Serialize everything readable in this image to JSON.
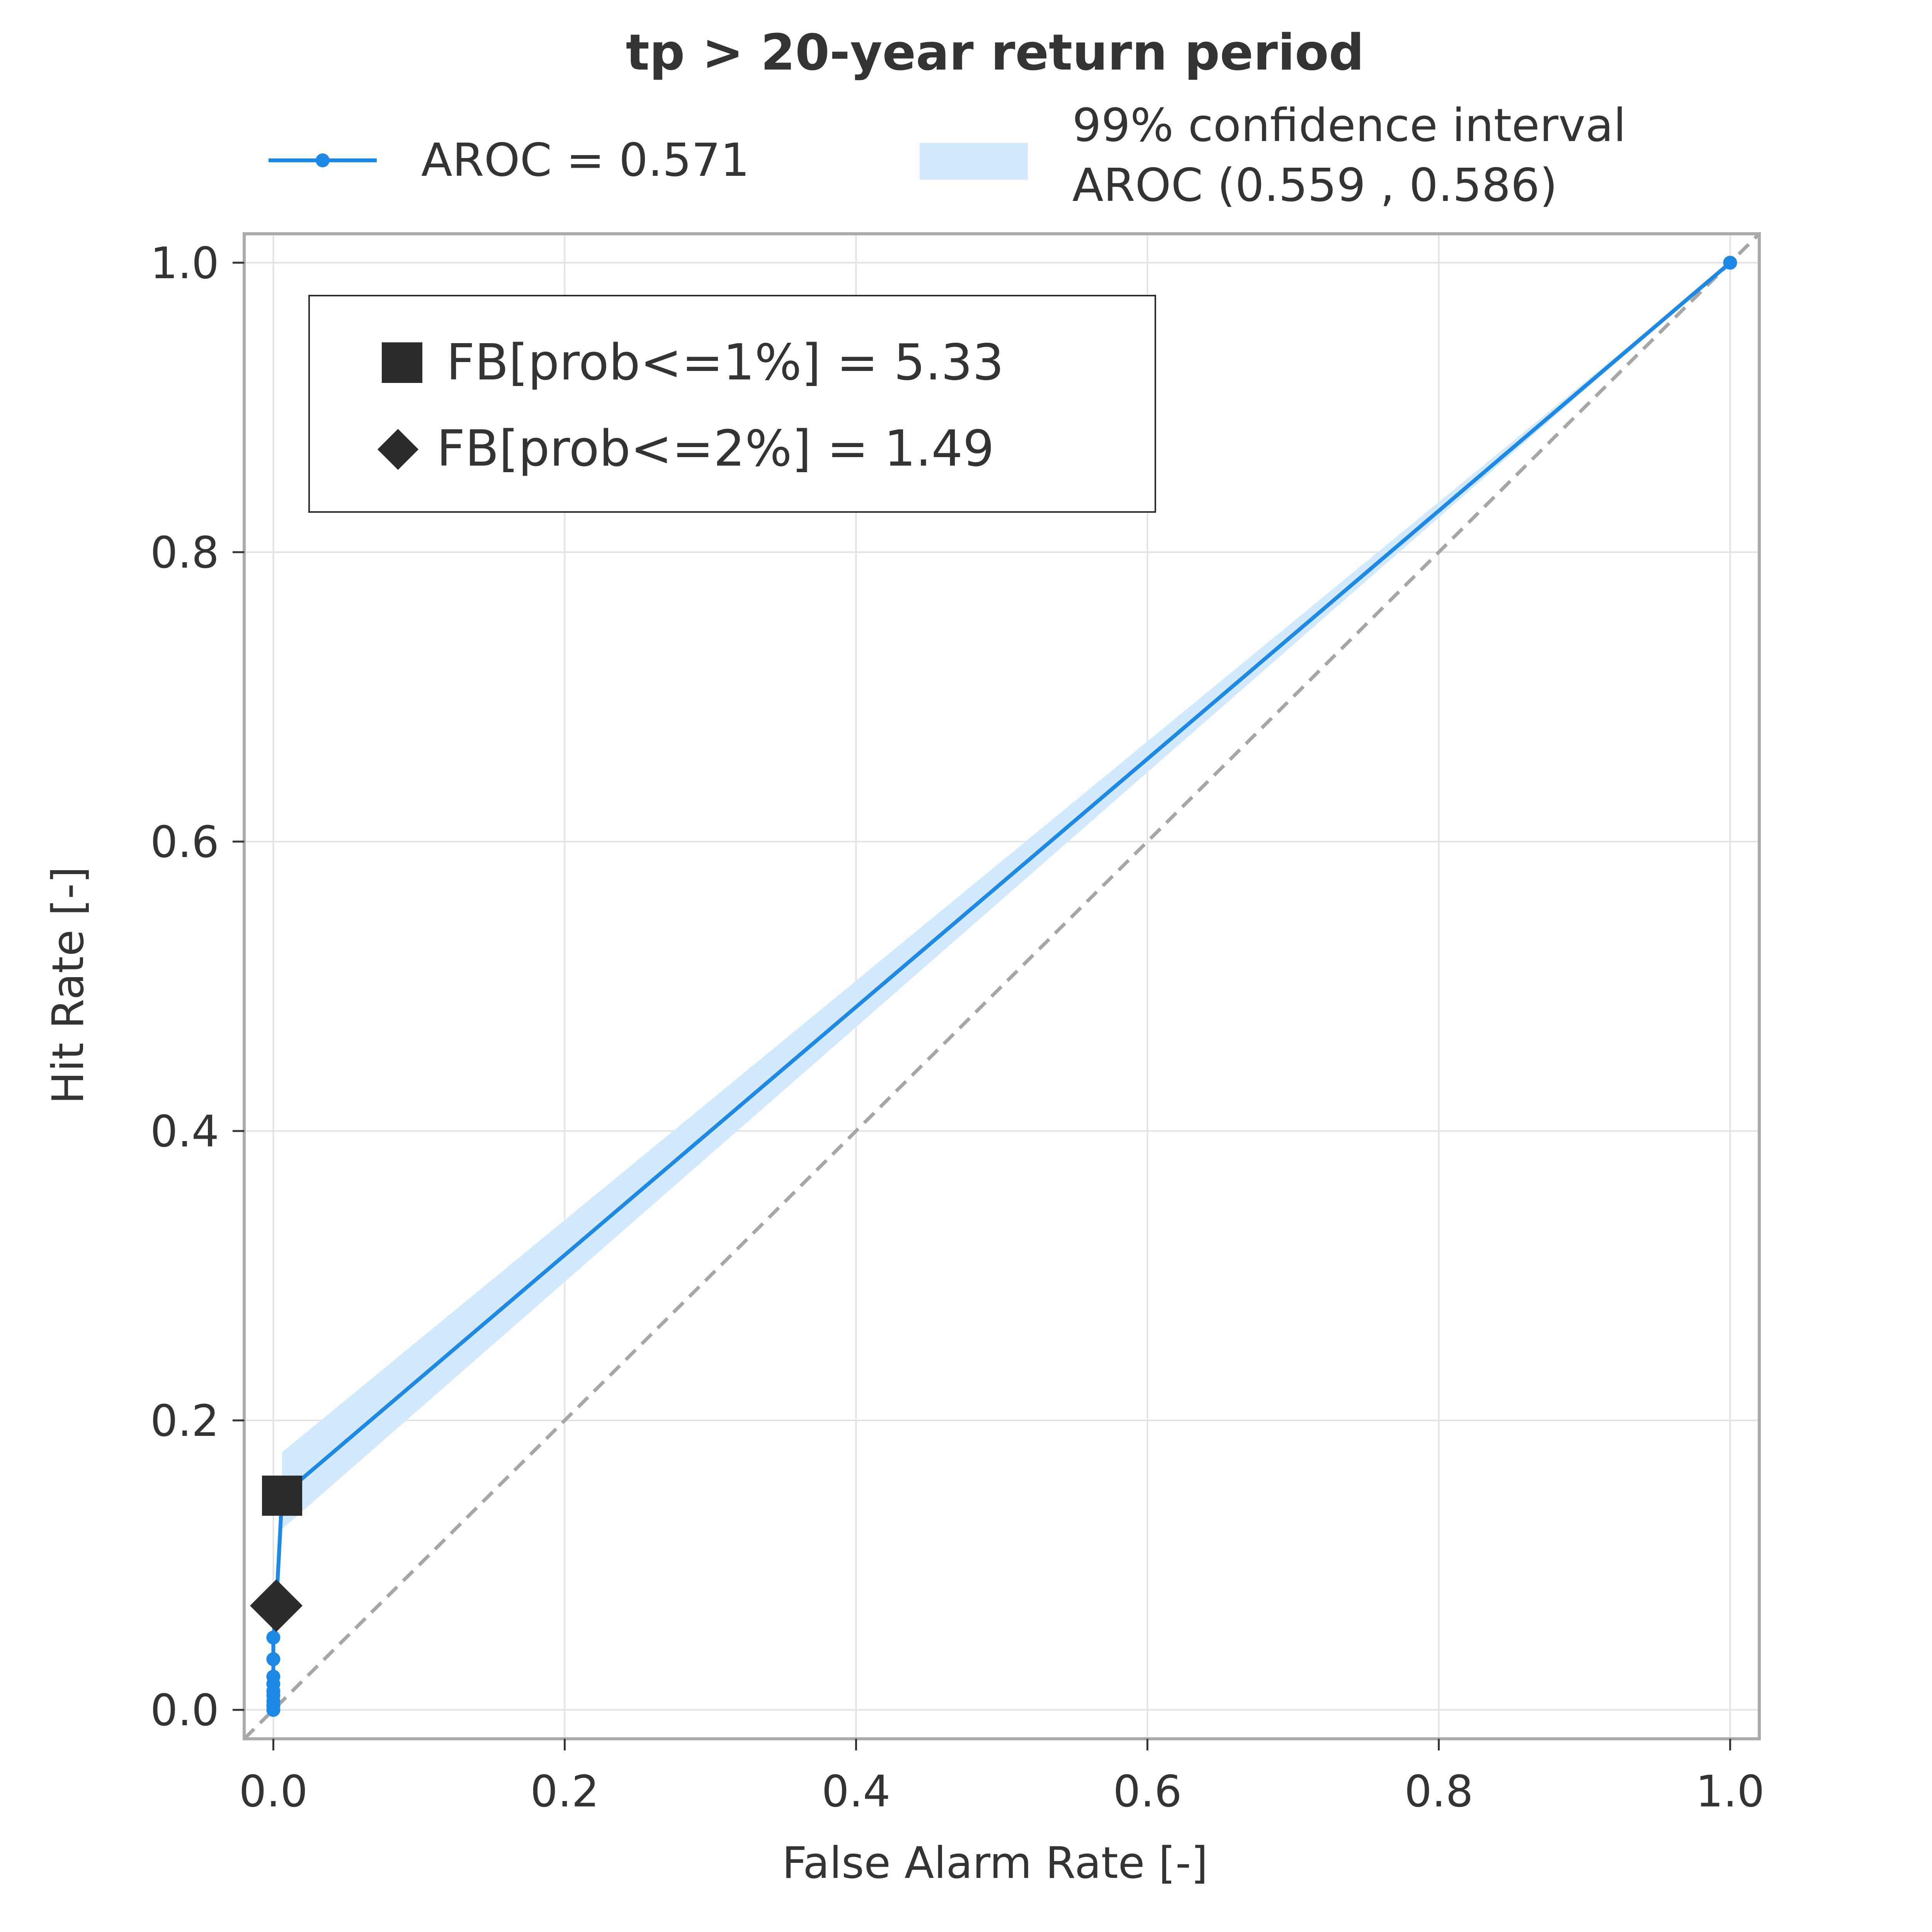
{
  "colors": {
    "line": "#1e88e5",
    "band": "#d2e8fc",
    "grid": "#e3e3e3",
    "frame": "#aaaaaa",
    "diagonal": "#a6a6a6",
    "marker": "#2b2b2b",
    "text": "#333333"
  },
  "chart_data": {
    "type": "line",
    "title": "tp > 20-year return period",
    "xlabel": "False Alarm Rate [-]",
    "ylabel": "Hit Rate [-]",
    "xlim": [
      -0.02,
      1.02
    ],
    "ylim": [
      -0.02,
      1.02
    ],
    "grid": true,
    "xticks": [
      "0.0",
      "0.2",
      "0.4",
      "0.6",
      "0.8",
      "1.0"
    ],
    "yticks": [
      "0.0",
      "0.2",
      "0.4",
      "0.6",
      "0.8",
      "1.0"
    ],
    "legend": {
      "placement": "top-center",
      "line_label": "AROC = 0.571",
      "band_label_line1": "99% confidence interval",
      "band_label_line2": "AROC (0.559 , 0.586)"
    },
    "series": [
      {
        "name": "AROC = 0.571",
        "points": [
          {
            "x": 0.0,
            "y": 0.0
          },
          {
            "x": 0.0,
            "y": 0.003
          },
          {
            "x": 0.0,
            "y": 0.006
          },
          {
            "x": 0.0,
            "y": 0.01
          },
          {
            "x": 0.0,
            "y": 0.013
          },
          {
            "x": 0.0,
            "y": 0.018
          },
          {
            "x": 0.0,
            "y": 0.023
          },
          {
            "x": 0.0,
            "y": 0.035
          },
          {
            "x": 0.0,
            "y": 0.05
          },
          {
            "x": 0.002,
            "y": 0.072
          },
          {
            "x": 0.006,
            "y": 0.148
          },
          {
            "x": 1.0,
            "y": 1.0
          }
        ]
      }
    ],
    "confidence_band": {
      "upper": [
        {
          "x": 0.006,
          "y": 0.178
        },
        {
          "x": 1.0,
          "y": 1.0
        }
      ],
      "lower": [
        {
          "x": 0.006,
          "y": 0.125
        },
        {
          "x": 1.0,
          "y": 1.0
        }
      ]
    },
    "markers": [
      {
        "label": "FB[prob<=1%] = 5.33",
        "shape": "square",
        "x": 0.006,
        "y": 0.148
      },
      {
        "label": "FB[prob<=2%] = 1.49",
        "shape": "diamond",
        "x": 0.002,
        "y": 0.072
      }
    ],
    "reference_line": {
      "from": [
        0,
        0
      ],
      "to": [
        1,
        1
      ],
      "style": "dashed"
    }
  }
}
